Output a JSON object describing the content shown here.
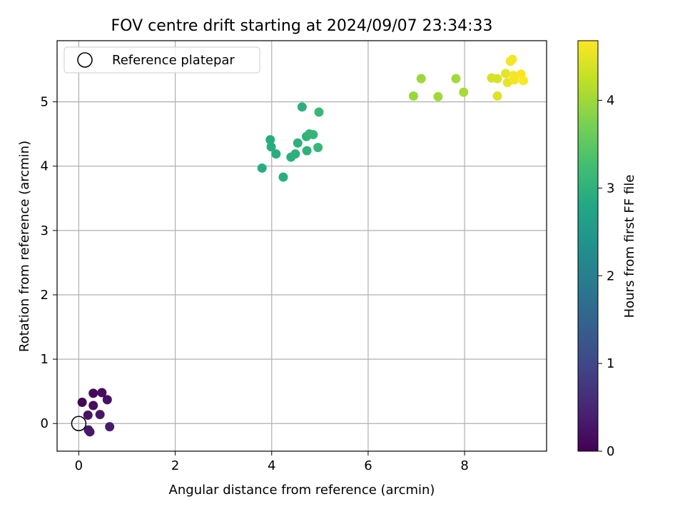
{
  "chart_data": {
    "type": "scatter",
    "title": "FOV centre drift starting at 2024/09/07 23:34:33",
    "xlabel": "Angular distance from reference (arcmin)",
    "ylabel": "Rotation from reference (arcmin)",
    "xlim": [
      -0.45,
      9.7
    ],
    "ylim": [
      -0.43,
      5.95
    ],
    "xticks": [
      0,
      2,
      4,
      6,
      8
    ],
    "yticks": [
      0,
      1,
      2,
      3,
      4,
      5
    ],
    "grid": true,
    "legend": {
      "placement": "top-left",
      "entries": [
        "Reference platepar"
      ]
    },
    "reference_point": {
      "x": 0,
      "y": 0,
      "label": "Reference platepar"
    },
    "colorbar": {
      "label": "Hours from first FF file",
      "colormap": "viridis",
      "range": [
        0,
        4.68
      ],
      "ticks": [
        0,
        1,
        2,
        3,
        4
      ]
    },
    "points": [
      {
        "x": 0.07,
        "y": 0.33,
        "hours": 0.05
      },
      {
        "x": 0.3,
        "y": 0.47,
        "hours": 0.1
      },
      {
        "x": 0.48,
        "y": 0.48,
        "hours": 0.15
      },
      {
        "x": 0.59,
        "y": 0.37,
        "hours": 0.22
      },
      {
        "x": 0.3,
        "y": 0.28,
        "hours": 0.18
      },
      {
        "x": 0.19,
        "y": 0.13,
        "hours": 0.25
      },
      {
        "x": 0.44,
        "y": 0.14,
        "hours": 0.28
      },
      {
        "x": 0.2,
        "y": -0.1,
        "hours": 0.3
      },
      {
        "x": 0.23,
        "y": -0.13,
        "hours": 0.32
      },
      {
        "x": 0.64,
        "y": -0.05,
        "hours": 0.35
      },
      {
        "x": 3.8,
        "y": 3.97,
        "hours": 2.9
      },
      {
        "x": 3.97,
        "y": 4.41,
        "hours": 2.88
      },
      {
        "x": 3.99,
        "y": 4.3,
        "hours": 2.9
      },
      {
        "x": 4.09,
        "y": 4.19,
        "hours": 2.92
      },
      {
        "x": 4.24,
        "y": 3.83,
        "hours": 2.9
      },
      {
        "x": 4.4,
        "y": 4.14,
        "hours": 2.95
      },
      {
        "x": 4.49,
        "y": 4.19,
        "hours": 2.98
      },
      {
        "x": 4.54,
        "y": 4.36,
        "hours": 3.0
      },
      {
        "x": 4.63,
        "y": 4.92,
        "hours": 2.95
      },
      {
        "x": 4.72,
        "y": 4.46,
        "hours": 3.02
      },
      {
        "x": 4.73,
        "y": 4.24,
        "hours": 3.0
      },
      {
        "x": 4.78,
        "y": 4.5,
        "hours": 3.05
      },
      {
        "x": 4.86,
        "y": 4.49,
        "hours": 3.08
      },
      {
        "x": 4.96,
        "y": 4.29,
        "hours": 3.1
      },
      {
        "x": 4.98,
        "y": 4.84,
        "hours": 3.12
      },
      {
        "x": 6.94,
        "y": 5.09,
        "hours": 3.95
      },
      {
        "x": 7.1,
        "y": 5.36,
        "hours": 3.98
      },
      {
        "x": 7.45,
        "y": 5.08,
        "hours": 4.0
      },
      {
        "x": 7.82,
        "y": 5.36,
        "hours": 4.02
      },
      {
        "x": 7.98,
        "y": 5.15,
        "hours": 4.05
      },
      {
        "x": 8.56,
        "y": 5.37,
        "hours": 4.4
      },
      {
        "x": 8.68,
        "y": 5.36,
        "hours": 4.42
      },
      {
        "x": 8.68,
        "y": 5.09,
        "hours": 4.45
      },
      {
        "x": 8.85,
        "y": 5.44,
        "hours": 4.5
      },
      {
        "x": 8.89,
        "y": 5.3,
        "hours": 4.52
      },
      {
        "x": 8.95,
        "y": 5.63,
        "hours": 4.58
      },
      {
        "x": 8.99,
        "y": 5.66,
        "hours": 4.6
      },
      {
        "x": 9.01,
        "y": 5.41,
        "hours": 4.62
      },
      {
        "x": 9.03,
        "y": 5.34,
        "hours": 4.62
      },
      {
        "x": 9.17,
        "y": 5.43,
        "hours": 4.64
      },
      {
        "x": 9.22,
        "y": 5.33,
        "hours": 4.66
      }
    ]
  }
}
